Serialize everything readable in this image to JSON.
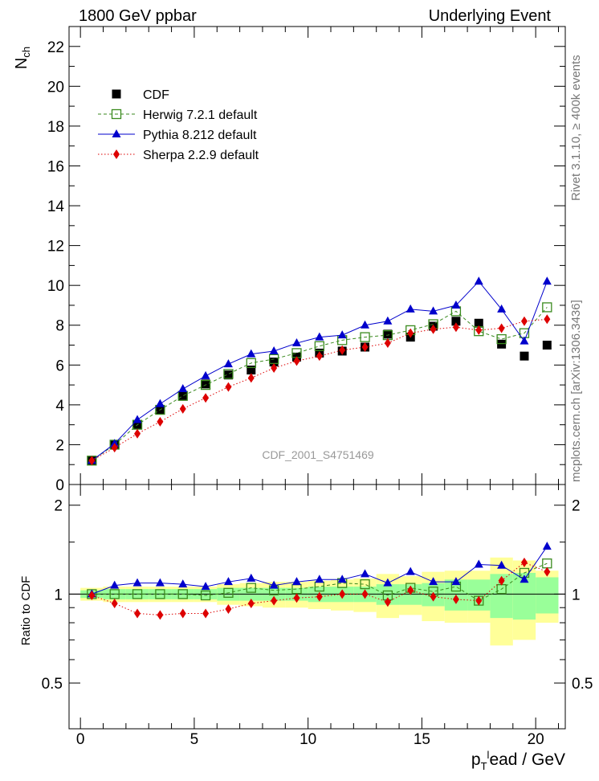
{
  "header": {
    "left": "1800 GeV ppbar",
    "right": "Underlying Event"
  },
  "side_labels": {
    "rivet": "Rivet 3.1.10, ≥ 400k events",
    "mcplots": "mcplots.cern.ch [arXiv:1306.3436]"
  },
  "watermark": "CDF_2001_S4751469",
  "colors": {
    "cdf": "#000000",
    "herwig": "#3a8a1e",
    "pythia": "#0000cc",
    "sherpa": "#dd0000",
    "band_outer": "#ffff99",
    "band_inner": "#99ff99"
  },
  "chart_data": [
    {
      "type": "scatter",
      "panel": "main",
      "ylabel": "N_ch",
      "ylim": [
        0,
        23
      ],
      "xlim": [
        -0.5,
        21.3
      ],
      "y_ticks": [
        0,
        2,
        4,
        6,
        8,
        10,
        12,
        14,
        16,
        18,
        20,
        22
      ],
      "legend_position": "top-left",
      "series": [
        {
          "key": "cdf",
          "name": "CDF",
          "marker": "filled-square",
          "x": [
            0.5,
            1.5,
            2.5,
            3.5,
            4.5,
            5.5,
            6.5,
            7.5,
            8.5,
            9.5,
            10.5,
            11.5,
            12.5,
            13.5,
            14.5,
            15.5,
            16.5,
            17.5,
            18.5,
            19.5,
            20.5
          ],
          "y": [
            1.2,
            2.0,
            3.0,
            3.75,
            4.45,
            5.05,
            5.5,
            5.75,
            6.15,
            6.4,
            6.6,
            6.7,
            6.9,
            7.55,
            7.4,
            7.95,
            8.2,
            8.1,
            7.05,
            6.45,
            7.0
          ]
        },
        {
          "key": "herwig",
          "name": "Herwig 7.2.1 default",
          "marker": "open-square",
          "line": "dashed",
          "x": [
            0.5,
            1.5,
            2.5,
            3.5,
            4.5,
            5.5,
            6.5,
            7.5,
            8.5,
            9.5,
            10.5,
            11.5,
            12.5,
            13.5,
            14.5,
            15.5,
            16.5,
            17.5,
            18.5,
            19.5,
            20.5
          ],
          "y": [
            1.2,
            2.0,
            3.0,
            3.75,
            4.45,
            5.0,
            5.55,
            6.1,
            6.3,
            6.6,
            6.95,
            7.25,
            7.4,
            7.5,
            7.75,
            8.05,
            8.7,
            7.7,
            7.3,
            7.6,
            8.9
          ]
        },
        {
          "key": "pythia",
          "name": "Pythia 8.212 default",
          "marker": "triangle",
          "line": "solid",
          "x": [
            0.5,
            1.5,
            2.5,
            3.5,
            4.5,
            5.5,
            6.5,
            7.5,
            8.5,
            9.5,
            10.5,
            11.5,
            12.5,
            13.5,
            14.5,
            15.5,
            16.5,
            17.5,
            18.5,
            19.5,
            20.5
          ],
          "y": [
            1.2,
            2.05,
            3.25,
            4.05,
            4.8,
            5.45,
            6.05,
            6.55,
            6.7,
            7.1,
            7.4,
            7.5,
            8.0,
            8.2,
            8.8,
            8.7,
            9.0,
            10.2,
            8.8,
            7.2,
            10.2
          ]
        },
        {
          "key": "sherpa",
          "name": "Sherpa 2.2.9 default",
          "marker": "diamond",
          "line": "dotted",
          "x": [
            0.5,
            1.5,
            2.5,
            3.5,
            4.5,
            5.5,
            6.5,
            7.5,
            8.5,
            9.5,
            10.5,
            11.5,
            12.5,
            13.5,
            14.5,
            15.5,
            16.5,
            17.5,
            18.5,
            19.5,
            20.5
          ],
          "y": [
            1.2,
            1.85,
            2.55,
            3.15,
            3.8,
            4.35,
            4.9,
            5.35,
            5.85,
            6.2,
            6.45,
            6.75,
            6.9,
            7.1,
            7.6,
            7.8,
            7.9,
            7.75,
            7.85,
            8.2,
            8.3
          ]
        }
      ]
    },
    {
      "type": "scatter",
      "panel": "ratio",
      "ylabel": "Ratio to CDF",
      "ylim": [
        0.35,
        2.35
      ],
      "y_ticks": [
        0.5,
        1,
        2
      ],
      "y_tick_labels": [
        "0.5",
        "1",
        "2"
      ],
      "xlabel": "p_T^lead / GeV",
      "x_ticks": [
        0,
        5,
        10,
        15,
        20
      ],
      "bands": {
        "x": [
          0.5,
          1.5,
          2.5,
          3.5,
          4.5,
          5.5,
          6.5,
          7.5,
          8.5,
          9.5,
          10.5,
          11.5,
          12.5,
          13.5,
          14.5,
          15.5,
          16.5,
          17.5,
          18.5,
          19.5,
          20.5
        ],
        "inner": [
          0.03,
          0.04,
          0.04,
          0.04,
          0.04,
          0.04,
          0.05,
          0.05,
          0.05,
          0.05,
          0.06,
          0.06,
          0.06,
          0.08,
          0.08,
          0.09,
          0.12,
          0.12,
          0.17,
          0.18,
          0.14
        ],
        "outer": [
          0.05,
          0.06,
          0.06,
          0.06,
          0.06,
          0.06,
          0.08,
          0.09,
          0.1,
          0.1,
          0.11,
          0.12,
          0.13,
          0.17,
          0.15,
          0.19,
          0.2,
          0.2,
          0.33,
          0.3,
          0.2
        ]
      },
      "series": [
        {
          "key": "herwig",
          "name": "Herwig 7.2.1 default",
          "y": [
            1.0,
            1.0,
            1.0,
            1.0,
            1.0,
            0.99,
            1.01,
            1.05,
            1.03,
            1.04,
            1.06,
            1.09,
            1.08,
            0.99,
            1.05,
            1.02,
            1.06,
            0.95,
            1.04,
            1.18,
            1.27
          ]
        },
        {
          "key": "pythia",
          "name": "Pythia 8.212 default",
          "y": [
            1.0,
            1.07,
            1.09,
            1.09,
            1.08,
            1.06,
            1.1,
            1.13,
            1.07,
            1.1,
            1.12,
            1.12,
            1.17,
            1.09,
            1.19,
            1.1,
            1.1,
            1.26,
            1.25,
            1.12,
            1.45
          ]
        },
        {
          "key": "sherpa",
          "name": "Sherpa 2.2.9 default",
          "y": [
            0.99,
            0.93,
            0.86,
            0.85,
            0.86,
            0.86,
            0.89,
            0.93,
            0.95,
            0.97,
            0.98,
            1.0,
            1.0,
            0.94,
            1.03,
            0.98,
            0.96,
            0.95,
            1.11,
            1.28,
            1.19
          ]
        }
      ]
    }
  ]
}
